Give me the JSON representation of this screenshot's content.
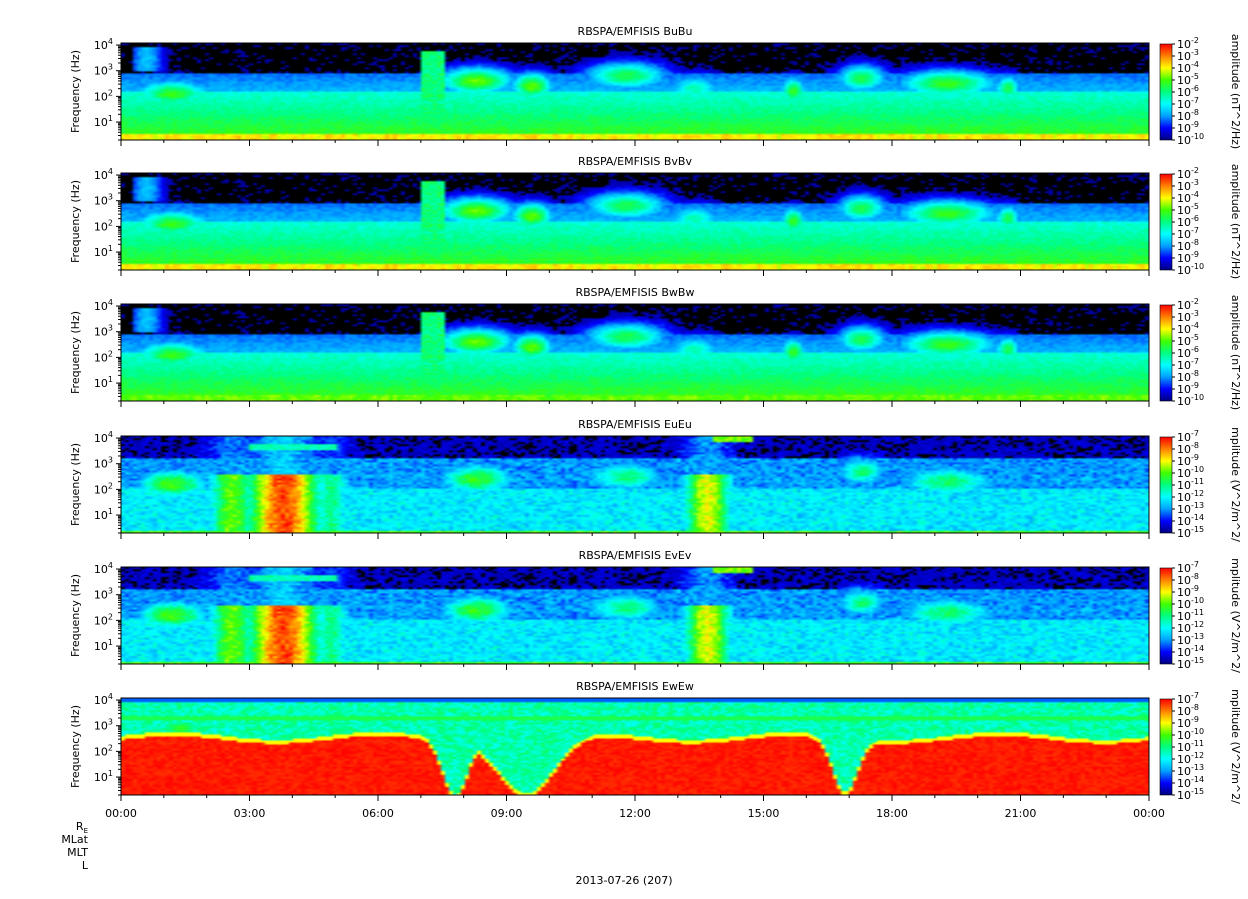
{
  "chart_data": {
    "type": "heatmap",
    "y_scale": "log",
    "ylim_hz": [
      2,
      12000
    ],
    "xlim_hours": [
      0,
      24
    ],
    "colormap": [
      "#000080",
      "#0000ff",
      "#00a0ff",
      "#00ffff",
      "#00ff80",
      "#40ff00",
      "#ffff00",
      "#ff8000",
      "#ff0000"
    ],
    "x_ticks": [
      "00:00",
      "03:00",
      "06:00",
      "09:00",
      "12:00",
      "15:00",
      "18:00",
      "21:00",
      "00:00"
    ],
    "y_tick_bases": [
      "10",
      "10",
      "10",
      "10"
    ],
    "y_tick_exps": [
      "1",
      "2",
      "3",
      "4"
    ],
    "ylabel": "Frequency (Hz)",
    "panels": [
      {
        "title": "RBSPA/EMFISIS  BuBu",
        "cb_label": "amplitude (nT^2/Hz)",
        "cb_exps": [
          "-2",
          "-3",
          "-4",
          "-5",
          "-6",
          "-7",
          "-8",
          "-9",
          "-10"
        ],
        "kind": "B"
      },
      {
        "title": "RBSPA/EMFISIS  BvBv",
        "cb_label": "amplitude (nT^2/Hz)",
        "cb_exps": [
          "-2",
          "-3",
          "-4",
          "-5",
          "-6",
          "-7",
          "-8",
          "-9",
          "-10"
        ],
        "kind": "B"
      },
      {
        "title": "RBSPA/EMFISIS  BwBw",
        "cb_label": "amplitude (nT^2/Hz)",
        "cb_exps": [
          "-2",
          "-3",
          "-4",
          "-5",
          "-6",
          "-7",
          "-8",
          "-9",
          "-10"
        ],
        "kind": "Bw"
      },
      {
        "title": "RBSPA/EMFISIS  EuEu",
        "cb_label": "mplitude (V^2/m^2/",
        "cb_exps": [
          "-7",
          "-8",
          "-9",
          "-10",
          "-11",
          "-12",
          "-13",
          "-14",
          "-15"
        ],
        "kind": "E"
      },
      {
        "title": "RBSPA/EMFISIS  EvEv",
        "cb_label": "mplitude (V^2/m^2/",
        "cb_exps": [
          "-7",
          "-8",
          "-9",
          "-10",
          "-11",
          "-12",
          "-13",
          "-14",
          "-15"
        ],
        "kind": "E"
      },
      {
        "title": "RBSPA/EMFISIS  EwEw",
        "cb_label": "mplitude (V^2/m^2/",
        "cb_exps": [
          "-7",
          "-8",
          "-9",
          "-10",
          "-11",
          "-12",
          "-13",
          "-14",
          "-15"
        ],
        "kind": "Ew"
      }
    ]
  },
  "footer": {
    "ephemeris_labels": [
      "R",
      "MLat",
      "MLT",
      "L"
    ],
    "re_subscript": "E",
    "date": "2013-07-26 (207)"
  }
}
